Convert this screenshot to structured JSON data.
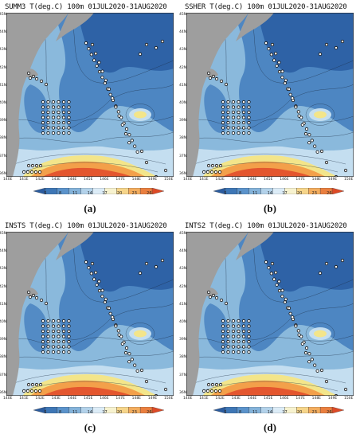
{
  "colors": {
    "land": "#9e9e9e",
    "deep_blue": "#2e62a6",
    "mid_blue": "#4d86c2",
    "light_blue": "#8ab9dc",
    "pale_blue": "#c4def0",
    "warm_yellow": "#f3e58a",
    "orange": "#f3a04a",
    "red": "#e4562e",
    "station": "#111111"
  },
  "lat_labels": [
    "45N",
    "44N",
    "43N",
    "42N",
    "41N",
    "40N",
    "39N",
    "38N",
    "37N",
    "36N"
  ],
  "lon_labels": [
    "140E",
    "141E",
    "142E",
    "143E",
    "144E",
    "145E",
    "146E",
    "147E",
    "148E",
    "149E",
    "150E"
  ],
  "colorbar": {
    "ticks": [
      "5",
      "8",
      "11",
      "14",
      "17",
      "20",
      "23",
      "26"
    ],
    "colors": [
      "#2b5c9f",
      "#3e77b6",
      "#5b93cb",
      "#84b3da",
      "#b3d2ea",
      "#dcecf7",
      "#f7f2cf",
      "#f6d58a",
      "#f3ad5e",
      "#ea7f3f",
      "#dd4a26"
    ]
  },
  "panels": [
    {
      "title": "SUMM3  T(deg.C)  100m  01JUL2020-31AUG2020",
      "label": "(a)"
    },
    {
      "title": "SSHER  T(deg.C)  100m  01JUL2020-31AUG2020",
      "label": "(b)"
    },
    {
      "title": "INSTS  T(deg.C)  100m  01JUL2020-31AUG2020",
      "label": "(c)"
    },
    {
      "title": "INTS2  T(deg.C)  100m  01JUL2020-31AUG2020",
      "label": "(d)"
    }
  ]
}
